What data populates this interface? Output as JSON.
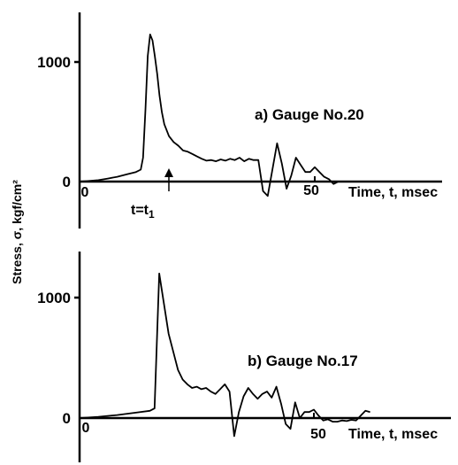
{
  "chart_data": [
    {
      "type": "line",
      "title": "a) Gauge No.20",
      "xlabel": "Time, t, msec",
      "ylabel": "Stress, σ, kgf/cm²",
      "x_ticks": [
        "0",
        "50"
      ],
      "y_ticks": [
        "0",
        "1000"
      ],
      "marker_label": "t=t",
      "marker_sub": "1",
      "marker_x": 14,
      "xlim": [
        0,
        60
      ],
      "ylim": [
        -180,
        1450
      ],
      "series": [
        {
          "x": [
            0,
            2,
            4,
            6,
            8,
            10,
            12,
            13,
            13.5,
            14,
            14.5,
            15,
            15.5,
            16,
            16.5,
            17,
            17.5,
            18,
            19,
            20,
            21,
            22,
            23,
            24,
            25,
            26,
            27,
            28,
            29,
            30,
            31,
            32,
            33,
            34,
            35,
            36,
            37,
            38,
            39,
            40,
            41,
            42,
            43,
            44,
            45,
            46,
            47,
            48,
            49,
            50,
            51,
            52,
            53,
            54,
            55
          ],
          "values": [
            0,
            5,
            12,
            25,
            40,
            60,
            80,
            100,
            200,
            600,
            1050,
            1230,
            1180,
            1050,
            900,
            720,
            580,
            480,
            380,
            330,
            300,
            260,
            250,
            230,
            210,
            190,
            175,
            180,
            170,
            185,
            175,
            190,
            180,
            200,
            170,
            190,
            180,
            180,
            -80,
            -120,
            100,
            320,
            150,
            -60,
            50,
            200,
            140,
            80,
            80,
            120,
            80,
            40,
            20,
            -20,
            0
          ]
        }
      ]
    },
    {
      "type": "line",
      "title": "b) Gauge No.17",
      "xlabel": "Time, t, msec",
      "ylabel": "",
      "x_ticks": [
        "0",
        "50"
      ],
      "y_ticks": [
        "0",
        "1000"
      ],
      "xlim": [
        0,
        62
      ],
      "ylim": [
        -180,
        1450
      ],
      "series": [
        {
          "x": [
            0,
            4,
            8,
            12,
            15,
            16,
            17,
            18,
            19,
            20,
            21,
            22,
            23,
            24,
            25,
            26,
            27,
            28,
            29,
            30,
            31,
            32,
            33,
            34,
            35,
            36,
            37,
            38,
            39,
            40,
            41,
            42,
            43,
            44,
            45,
            46,
            47,
            48,
            49,
            50,
            51,
            52,
            53,
            54,
            55,
            56,
            57,
            58,
            59,
            60,
            61,
            62
          ],
          "values": [
            0,
            10,
            25,
            45,
            60,
            80,
            1200,
            950,
            700,
            550,
            400,
            320,
            280,
            250,
            260,
            240,
            250,
            220,
            200,
            240,
            280,
            220,
            -150,
            50,
            180,
            250,
            200,
            160,
            200,
            220,
            170,
            260,
            120,
            -50,
            -90,
            130,
            0,
            50,
            50,
            70,
            20,
            -20,
            -10,
            -30,
            -30,
            -20,
            -25,
            -15,
            -20,
            20,
            60,
            50
          ]
        }
      ]
    }
  ]
}
